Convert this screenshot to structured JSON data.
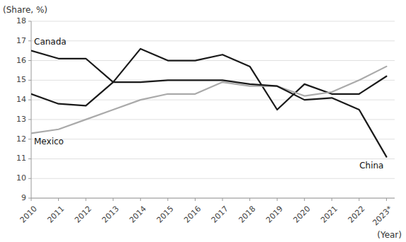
{
  "chart_data": {
    "type": "line",
    "ylabel": "(Share, %)",
    "xlabel": "(Year)",
    "x": [
      2010,
      2011,
      2012,
      2013,
      2014,
      2015,
      2016,
      2017,
      2018,
      2019,
      2020,
      2021,
      2022,
      2023
    ],
    "series": [
      {
        "name": "Canada",
        "color": "#1a1a1a",
        "values": [
          16.5,
          16.1,
          16.1,
          14.9,
          16.6,
          16.0,
          16.0,
          16.3,
          15.7,
          13.5,
          14.8,
          14.3,
          14.3,
          15.2
        ]
      },
      {
        "name": "Mexico",
        "color": "#aaaaaa",
        "values": [
          12.3,
          12.5,
          13.0,
          13.5,
          14.0,
          14.3,
          14.3,
          14.9,
          14.7,
          14.7,
          14.2,
          14.4,
          15.0,
          15.7
        ]
      },
      {
        "name": "China",
        "color": "#1a1a1a",
        "values": [
          14.3,
          13.8,
          13.7,
          14.9,
          14.9,
          15.0,
          15.0,
          15.0,
          14.8,
          14.7,
          14.0,
          14.1,
          13.5,
          11.1
        ]
      }
    ],
    "xlim": [
      2010,
      2023.3
    ],
    "xticks": [
      2010,
      2011,
      2012,
      2013,
      2014,
      2015,
      2016,
      2017,
      2018,
      2019,
      2020,
      2021,
      2022,
      {
        "value": 2023,
        "label": "2023*"
      }
    ],
    "ylim": [
      9,
      18
    ],
    "yticks": [
      9,
      10,
      11,
      12,
      13,
      14,
      15,
      16,
      17,
      18
    ],
    "grid": true
  }
}
